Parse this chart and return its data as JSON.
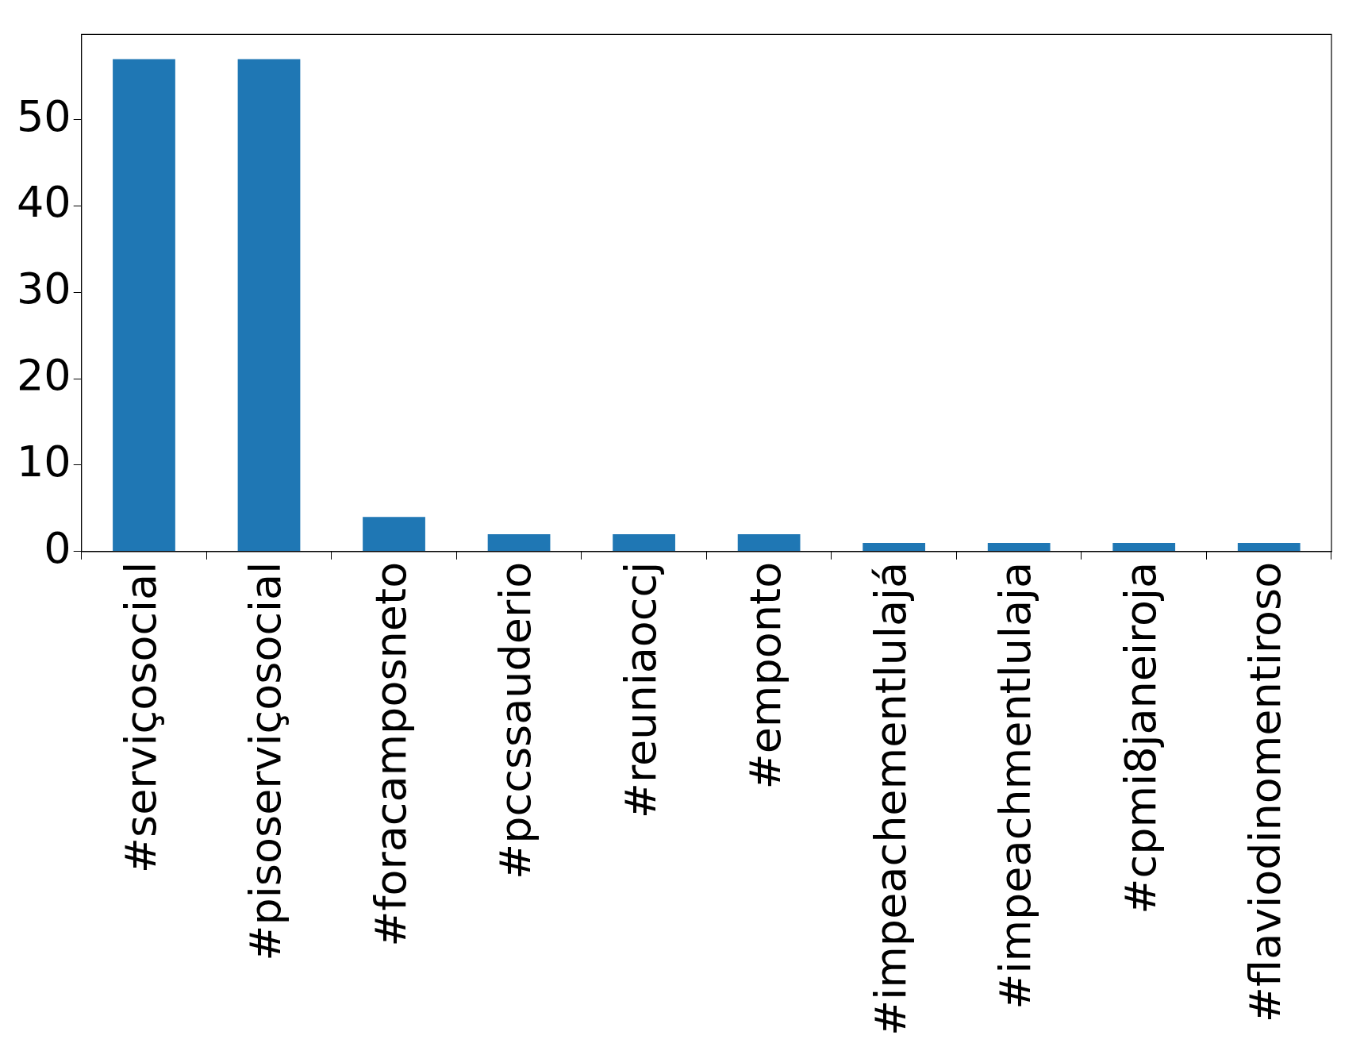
{
  "chart_data": {
    "type": "bar",
    "categories": [
      "#serviçosocial",
      "#pisoserviçosocial",
      "#foracamposneto",
      "#pccssauderio",
      "#reuniaoccj",
      "#emponto",
      "#impeachementlulajá",
      "#impeachmentlulaja",
      "#cpmi8janeiroja",
      "#flaviodinomentiroso"
    ],
    "values": [
      57,
      57,
      4,
      2,
      2,
      2,
      1,
      1,
      1,
      1
    ],
    "color": "#1f77b4",
    "ylim": [
      0,
      59.85
    ],
    "yticks": [
      0,
      10,
      20,
      30,
      40,
      50
    ],
    "grid": false,
    "legend": false
  }
}
